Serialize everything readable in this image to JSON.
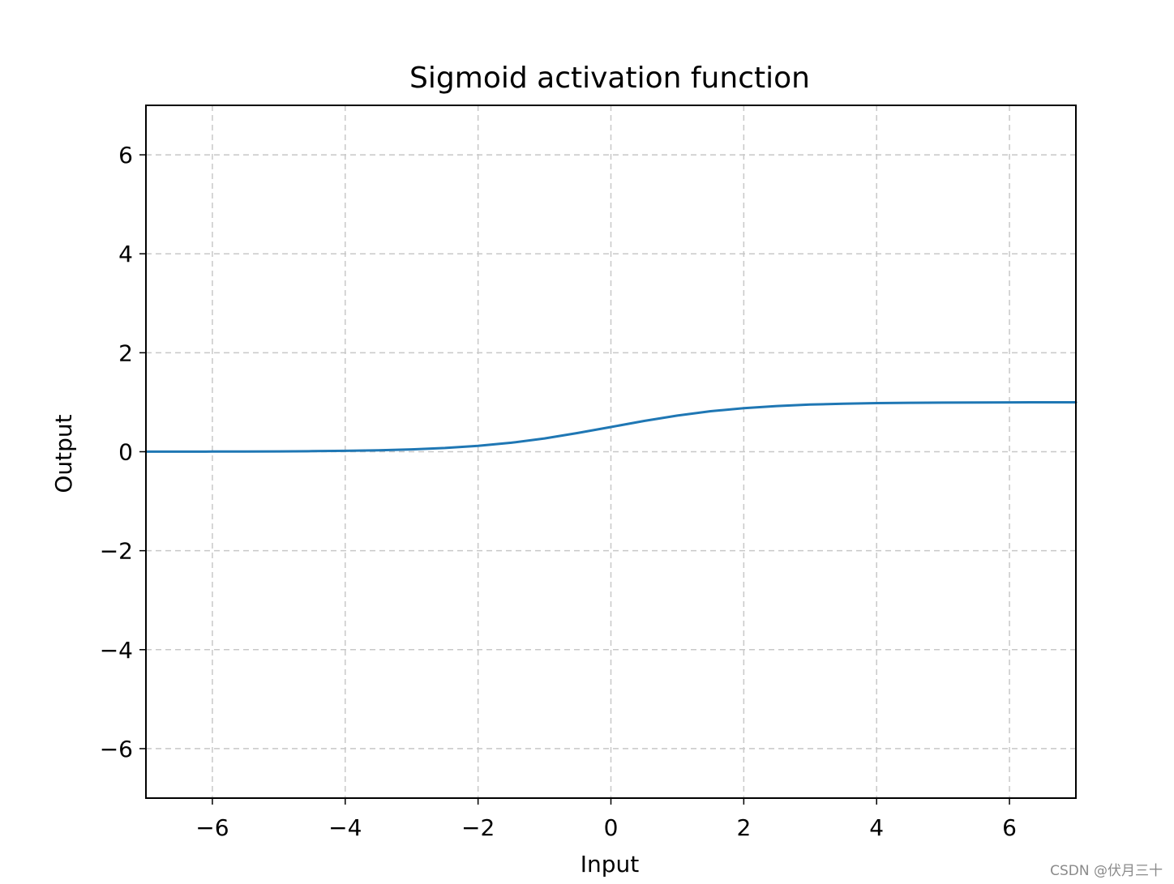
{
  "chart_data": {
    "type": "line",
    "title": "Sigmoid activation function",
    "xlabel": "Input",
    "ylabel": "Output",
    "xlim": [
      -7,
      7
    ],
    "ylim": [
      -7,
      7
    ],
    "xticks": [
      -6,
      -4,
      -2,
      0,
      2,
      4,
      6
    ],
    "yticks": [
      -6,
      -4,
      -2,
      0,
      2,
      4,
      6
    ],
    "xtick_labels": [
      "−6",
      "−4",
      "−2",
      "0",
      "2",
      "4",
      "6"
    ],
    "ytick_labels": [
      "−6",
      "−4",
      "−2",
      "0",
      "2",
      "4",
      "6"
    ],
    "grid": true,
    "grid_style": "dashed",
    "series": [
      {
        "color": "#1f77b4",
        "x": [
          -7,
          -6.5,
          -6,
          -5.5,
          -5,
          -4.5,
          -4,
          -3.5,
          -3,
          -2.5,
          -2,
          -1.5,
          -1,
          -0.5,
          0,
          0.5,
          1,
          1.5,
          2,
          2.5,
          3,
          3.5,
          4,
          4.5,
          5,
          5.5,
          6,
          6.5,
          7
        ],
        "y": [
          0.001,
          0.0015,
          0.0025,
          0.004,
          0.0067,
          0.011,
          0.018,
          0.029,
          0.047,
          0.076,
          0.119,
          0.182,
          0.269,
          0.378,
          0.5,
          0.622,
          0.731,
          0.818,
          0.881,
          0.924,
          0.953,
          0.971,
          0.982,
          0.989,
          0.993,
          0.996,
          0.9975,
          0.9985,
          0.999
        ]
      }
    ]
  },
  "watermark": "CSDN @伏月三十"
}
